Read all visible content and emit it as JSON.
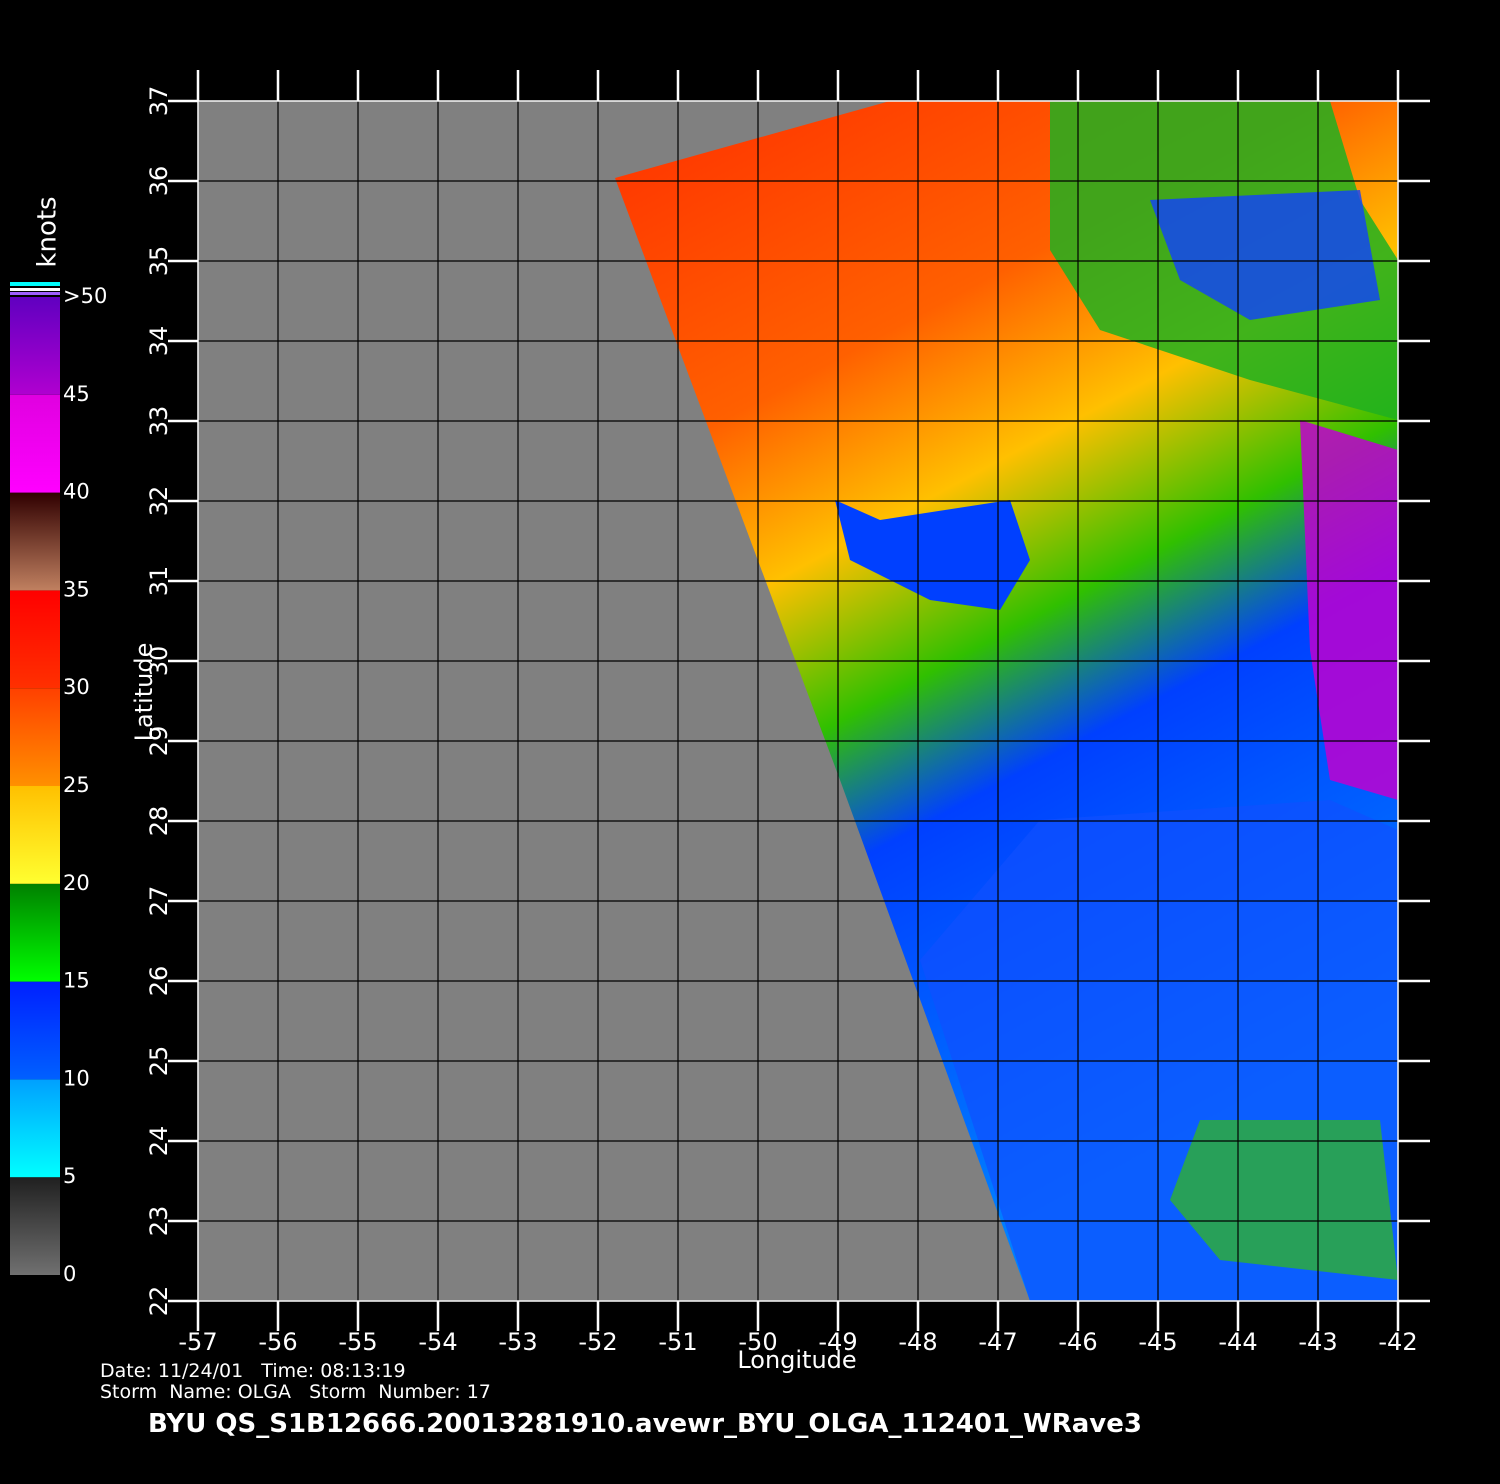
{
  "map": {
    "xlabel": "Longitude",
    "ylabel": "Latitude",
    "xlim": [
      -57,
      -42
    ],
    "ylim": [
      22,
      37
    ],
    "xticks": [
      -57,
      -56,
      -55,
      -54,
      -53,
      -52,
      -51,
      -50,
      -49,
      -48,
      -47,
      -46,
      -45,
      -44,
      -43,
      -42
    ],
    "yticks": [
      22,
      23,
      24,
      25,
      26,
      27,
      28,
      29,
      30,
      31,
      32,
      33,
      34,
      35,
      36,
      37
    ],
    "grid": true,
    "colorbar": {
      "title": "knots",
      "range": [
        0,
        50
      ],
      "ticks": [
        0,
        5,
        10,
        15,
        20,
        25,
        30,
        35,
        40,
        45,
        {
          "value": 50,
          "label": ">50"
        }
      ],
      "colors": [
        [
          "#707070",
          "#202020"
        ],
        [
          "#00ffff",
          "#00a0ff"
        ],
        [
          "#0060ff",
          "#0020ff"
        ],
        [
          "#00ff00",
          "#008000"
        ],
        [
          "#ffff30",
          "#ffc000"
        ],
        [
          "#ff9000",
          "#ff4000"
        ],
        [
          "#ff3000",
          "#ff0000"
        ],
        [
          "#c08060",
          "#300000"
        ],
        [
          "#ff00ff",
          "#e000e0"
        ],
        [
          "#b000d0",
          "#6000c0"
        ]
      ]
    },
    "info": {
      "date_line": "Date: 11/24/01   Time: 08:13:19",
      "storm_line": "Storm  Name: OLGA   Storm  Number: 17",
      "file_line": "BYU  QS_S1B12666.20013281910.avewr_BYU_OLGA_112401_WRave3"
    }
  }
}
